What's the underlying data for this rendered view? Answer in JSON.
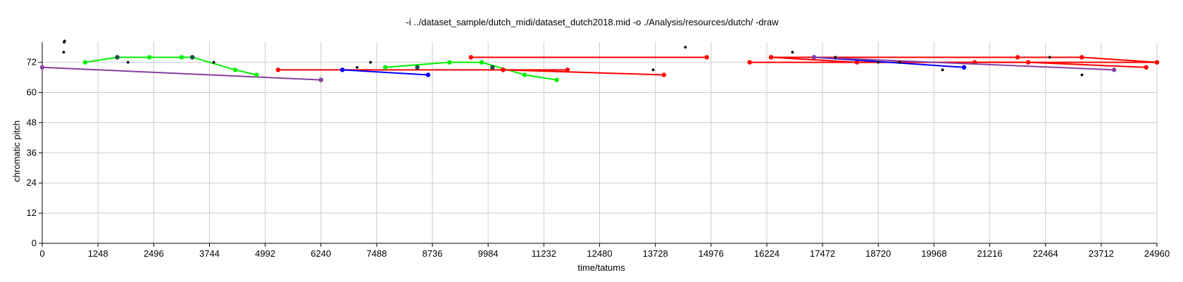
{
  "chart_data": {
    "type": "scatter",
    "title": "-i ../dataset_sample/dutch_midi/dataset_dutch2018.mid -o ./Analysis/resources/dutch/ -draw",
    "xlabel": "time/tatums",
    "ylabel": "chromatic pitch",
    "xlim": [
      0,
      24960
    ],
    "ylim": [
      0,
      80
    ],
    "xticks": [
      0,
      1248,
      2496,
      3744,
      4992,
      6240,
      7488,
      8736,
      9984,
      11232,
      12480,
      13728,
      14976,
      16224,
      17472,
      18720,
      19968,
      21216,
      22464,
      23712,
      24960
    ],
    "yticks": [
      0,
      12,
      24,
      36,
      48,
      60,
      72
    ],
    "grid": true,
    "colors": {
      "red": "#ff0000",
      "green": "#00ee00",
      "blue": "#0000ff",
      "purple": "#8a3fa0",
      "black": "#000000",
      "teal": "#1a4d4d",
      "grid": "#cccccc"
    },
    "series": [
      {
        "color": "purple",
        "points": [
          [
            0,
            70
          ],
          [
            6240,
            65
          ]
        ]
      },
      {
        "color": "green",
        "points": [
          [
            960,
            72
          ],
          [
            1680,
            74
          ],
          [
            2400,
            74
          ],
          [
            3120,
            74
          ],
          [
            3360,
            74
          ],
          [
            4320,
            69
          ],
          [
            4800,
            67
          ]
        ]
      },
      {
        "color": "red",
        "points": [
          [
            5280,
            69
          ],
          [
            10320,
            69
          ],
          [
            11760,
            69
          ]
        ]
      },
      {
        "color": "blue",
        "points": [
          [
            6720,
            69
          ],
          [
            8640,
            67
          ]
        ]
      },
      {
        "color": "green",
        "points": [
          [
            7680,
            70
          ],
          [
            9120,
            72
          ],
          [
            9840,
            72
          ],
          [
            10800,
            67
          ],
          [
            11520,
            65
          ]
        ]
      },
      {
        "color": "red",
        "points": [
          [
            9600,
            74
          ],
          [
            14880,
            74
          ]
        ]
      },
      {
        "color": "red",
        "points": [
          [
            10320,
            69
          ],
          [
            13920,
            67
          ]
        ]
      },
      {
        "color": "red",
        "points": [
          [
            15840,
            72
          ],
          [
            20880,
            72
          ],
          [
            24960,
            72
          ]
        ]
      },
      {
        "color": "red",
        "points": [
          [
            16320,
            74
          ],
          [
            18240,
            72
          ],
          [
            22080,
            72
          ],
          [
            24720,
            70
          ]
        ]
      },
      {
        "color": "red",
        "points": [
          [
            16320,
            74
          ],
          [
            21840,
            74
          ],
          [
            23280,
            74
          ],
          [
            24960,
            72
          ]
        ]
      },
      {
        "color": "blue",
        "points": [
          [
            17280,
            74
          ],
          [
            20640,
            70
          ]
        ]
      },
      {
        "color": "purple",
        "points": [
          [
            17280,
            74
          ],
          [
            24000,
            69
          ]
        ]
      }
    ],
    "dots": [
      {
        "x": 490,
        "y": 80,
        "color": "black"
      },
      {
        "x": 500,
        "y": 80.5,
        "color": "black"
      },
      {
        "x": 480,
        "y": 76,
        "color": "black"
      },
      {
        "x": 1680,
        "y": 74,
        "color": "teal"
      },
      {
        "x": 1920,
        "y": 72,
        "color": "black"
      },
      {
        "x": 3360,
        "y": 74,
        "color": "teal"
      },
      {
        "x": 3840,
        "y": 72,
        "color": "black"
      },
      {
        "x": 6240,
        "y": 65,
        "color": "purple"
      },
      {
        "x": 7050,
        "y": 70,
        "color": "black"
      },
      {
        "x": 7350,
        "y": 72,
        "color": "black"
      },
      {
        "x": 8400,
        "y": 70,
        "color": "teal"
      },
      {
        "x": 10080,
        "y": 70,
        "color": "teal"
      },
      {
        "x": 13680,
        "y": 69,
        "color": "black"
      },
      {
        "x": 14400,
        "y": 78,
        "color": "black"
      },
      {
        "x": 16800,
        "y": 76,
        "color": "black"
      },
      {
        "x": 17760,
        "y": 74,
        "color": "black"
      },
      {
        "x": 18720,
        "y": 72,
        "color": "black"
      },
      {
        "x": 19200,
        "y": 72,
        "color": "black"
      },
      {
        "x": 20160,
        "y": 69,
        "color": "black"
      },
      {
        "x": 22560,
        "y": 74,
        "color": "black"
      },
      {
        "x": 23280,
        "y": 67,
        "color": "black"
      }
    ]
  }
}
